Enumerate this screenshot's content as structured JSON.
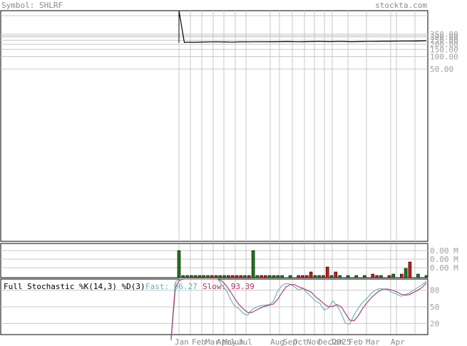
{
  "header": {
    "symbol_label": "Symbol: SHLRF",
    "site": "stockta.com"
  },
  "colors": {
    "grid": "#c8c8c8",
    "price_line": "#000000",
    "vol_up": "#1a7a1a",
    "vol_down": "#d01818",
    "fast": "#5fb3b3",
    "slow": "#b0306a"
  },
  "chart_data": [
    {
      "type": "line",
      "panel": "price",
      "y_scale": "log",
      "y_ticks": [
        "350.00",
        "300.00",
        "250.00",
        "200.00",
        "150.00",
        "100.00",
        "50.00"
      ],
      "y_tick_values": [
        350,
        300,
        250,
        200,
        150,
        100,
        50
      ],
      "x_ticks": [
        "Jan",
        "Feb",
        "Mar",
        "Apr",
        "May",
        "Jun",
        "Jul",
        "Aug",
        "Sep",
        "Oct",
        "Nov",
        "Dec",
        "Jan",
        "2025",
        "Feb",
        "Mar",
        "Apr"
      ],
      "series": [
        {
          "values": [
            999,
            222,
            224,
            223,
            225,
            226,
            228,
            229,
            227,
            226,
            224,
            227,
            229,
            228,
            229,
            229,
            229,
            230,
            230,
            231,
            232,
            231,
            229,
            230,
            231,
            232,
            233,
            232,
            231,
            232,
            233,
            232,
            230,
            231,
            232,
            233,
            233,
            234,
            235,
            235,
            236,
            237,
            238,
            238,
            239,
            240,
            242
          ]
        }
      ]
    },
    {
      "type": "bar",
      "panel": "volume",
      "y_ticks": [
        "0.00 M",
        "0.00 M",
        "0.00 M"
      ],
      "bars": [
        {
          "v": 38,
          "up": true
        },
        {
          "v": 3,
          "up": true
        },
        {
          "v": 3,
          "up": true
        },
        {
          "v": 3,
          "up": true
        },
        {
          "v": 3,
          "up": true
        },
        {
          "v": 3,
          "up": true
        },
        {
          "v": 3,
          "up": true
        },
        {
          "v": 3,
          "up": true
        },
        {
          "v": 3,
          "up": false
        },
        {
          "v": 3,
          "up": true
        },
        {
          "v": 3,
          "up": true
        },
        {
          "v": 3,
          "up": true
        },
        {
          "v": 3,
          "up": false
        },
        {
          "v": 3,
          "up": false
        },
        {
          "v": 3,
          "up": false
        },
        {
          "v": 3,
          "up": false
        },
        {
          "v": 3,
          "up": true
        },
        {
          "v": 3,
          "up": false
        },
        {
          "v": 38,
          "up": true
        },
        {
          "v": 3,
          "up": true
        },
        {
          "v": 3,
          "up": false
        },
        {
          "v": 3,
          "up": false
        },
        {
          "v": 3,
          "up": true
        },
        {
          "v": 3,
          "up": true
        },
        {
          "v": 3,
          "up": true
        },
        {
          "v": 3,
          "up": true
        },
        {
          "v": 0,
          "up": true
        },
        {
          "v": 3,
          "up": true
        },
        {
          "v": 0,
          "up": true
        },
        {
          "v": 3,
          "up": false
        },
        {
          "v": 3,
          "up": false
        },
        {
          "v": 3,
          "up": false
        },
        {
          "v": 8,
          "up": false
        },
        {
          "v": 3,
          "up": true
        },
        {
          "v": 3,
          "up": true
        },
        {
          "v": 3,
          "up": false
        },
        {
          "v": 15,
          "up": false
        },
        {
          "v": 3,
          "up": true
        },
        {
          "v": 8,
          "up": false
        },
        {
          "v": 3,
          "up": true
        },
        {
          "v": 0,
          "up": true
        },
        {
          "v": 3,
          "up": true
        },
        {
          "v": 0,
          "up": true
        },
        {
          "v": 3,
          "up": true
        },
        {
          "v": 0,
          "up": true
        },
        {
          "v": 3,
          "up": true
        },
        {
          "v": 0,
          "up": true
        },
        {
          "v": 5,
          "up": false
        },
        {
          "v": 3,
          "up": false
        },
        {
          "v": 3,
          "up": true
        },
        {
          "v": 0,
          "up": true
        },
        {
          "v": 3,
          "up": false
        },
        {
          "v": 5,
          "up": true
        },
        {
          "v": 0,
          "up": true
        },
        {
          "v": 5,
          "up": false
        },
        {
          "v": 13,
          "up": true
        },
        {
          "v": 22,
          "up": false
        },
        {
          "v": 0,
          "up": true
        },
        {
          "v": 5,
          "up": true
        },
        {
          "v": 0,
          "up": true
        },
        {
          "v": 3,
          "up": true
        }
      ]
    },
    {
      "type": "line",
      "panel": "stochastic",
      "title": "Full Stochastic %K(14,3) %D(3)",
      "fast_label": "Fast: 96.27",
      "slow_label": "Slow: 93.39",
      "y_ticks": [
        "80",
        "50",
        "20"
      ],
      "y_tick_values": [
        80,
        50,
        20
      ],
      "ylim": [
        0,
        100
      ],
      "series": [
        {
          "name": "Fast",
          "values": [
            -5,
            95,
            100,
            100,
            100,
            100,
            100,
            100,
            100,
            100,
            100,
            100,
            88,
            80,
            63,
            51,
            46,
            38,
            35,
            45,
            49,
            52,
            53,
            54,
            59,
            78,
            88,
            92,
            91,
            86,
            80,
            84,
            75,
            68,
            60,
            56,
            44,
            48,
            61,
            52,
            38,
            20,
            19,
            35,
            48,
            58,
            65,
            74,
            80,
            83,
            82,
            80,
            76,
            73,
            69,
            72,
            75,
            80,
            85,
            90,
            96.27
          ]
        },
        {
          "name": "Slow",
          "values": [
            -10,
            85,
            98,
            100,
            100,
            100,
            100,
            100,
            100,
            100,
            100,
            100,
            96,
            88,
            77,
            64,
            54,
            46,
            40,
            40,
            44,
            48,
            51,
            53,
            55,
            63,
            75,
            86,
            90,
            90,
            86,
            83,
            80,
            76,
            68,
            62,
            55,
            50,
            51,
            54,
            50,
            38,
            26,
            25,
            34,
            47,
            57,
            66,
            73,
            79,
            82,
            82,
            80,
            77,
            73,
            71,
            72,
            76,
            80,
            85,
            93.39
          ]
        }
      ]
    }
  ]
}
